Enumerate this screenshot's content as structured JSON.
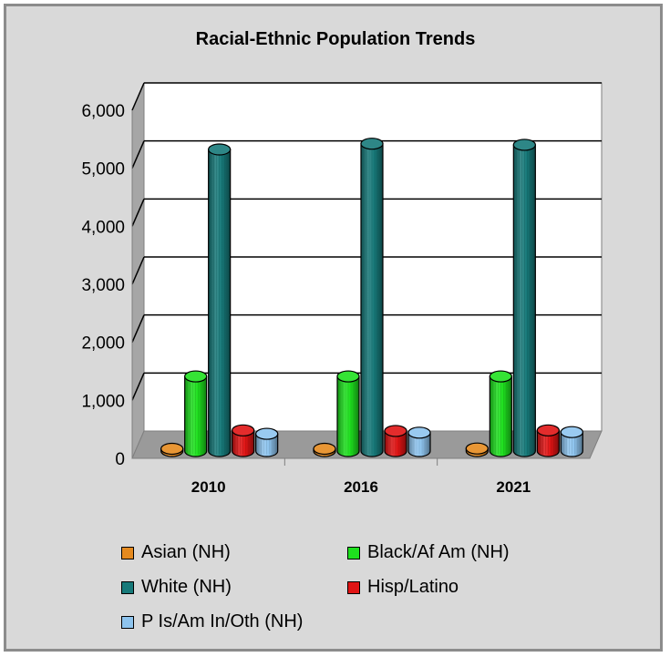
{
  "chart_data": {
    "type": "bar",
    "title": "Racial-Ethnic Population Trends",
    "categories": [
      "2010",
      "2016",
      "2021"
    ],
    "y_ticks": [
      "0",
      "1,000",
      "2,000",
      "3,000",
      "4,000",
      "5,000",
      "6,000"
    ],
    "ylim": [
      0,
      6000
    ],
    "grid": true,
    "legend_position": "bottom",
    "series": [
      {
        "name": "Asian (NH)",
        "values": [
          40,
          40,
          45
        ],
        "color": "#e58a1f"
      },
      {
        "name": "Black/Af Am (NH)",
        "values": [
          1300,
          1300,
          1300
        ],
        "color": "#1ee01e"
      },
      {
        "name": "White (NH)",
        "values": [
          5250,
          5350,
          5330
        ],
        "color": "#177a7a"
      },
      {
        "name": "Hisp/Latino",
        "values": [
          360,
          350,
          360
        ],
        "color": "#e01414"
      },
      {
        "name": "P Is/Am In/Oth (NH)",
        "values": [
          300,
          320,
          330
        ],
        "color": "#8ec4ee"
      }
    ]
  }
}
